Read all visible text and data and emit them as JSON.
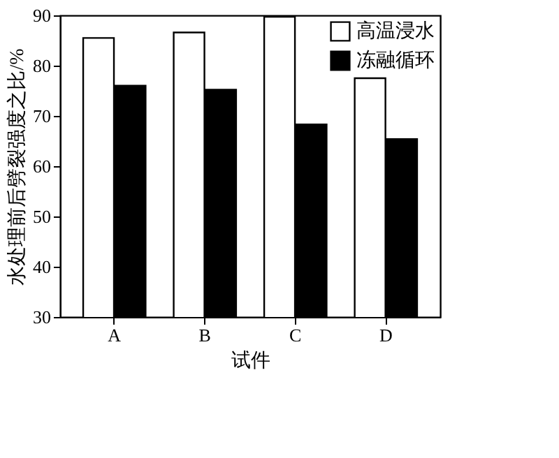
{
  "chart_data": {
    "type": "bar",
    "xlabel": "试件",
    "ylabel": "水处理前后劈裂强度之比/%",
    "categories": [
      "A",
      "B",
      "C",
      "D"
    ],
    "series": [
      {
        "name": "高温浸水",
        "color": "#ffffff",
        "values": [
          85.5,
          86.6,
          89.7,
          77.5
        ]
      },
      {
        "name": "冻融循环",
        "color": "#000000",
        "values": [
          76.0,
          75.2,
          68.3,
          65.4
        ]
      }
    ],
    "ylim": [
      30,
      90
    ],
    "yticks": [
      30,
      40,
      50,
      60,
      70,
      80,
      90
    ],
    "grid": false,
    "legend": "top right"
  }
}
